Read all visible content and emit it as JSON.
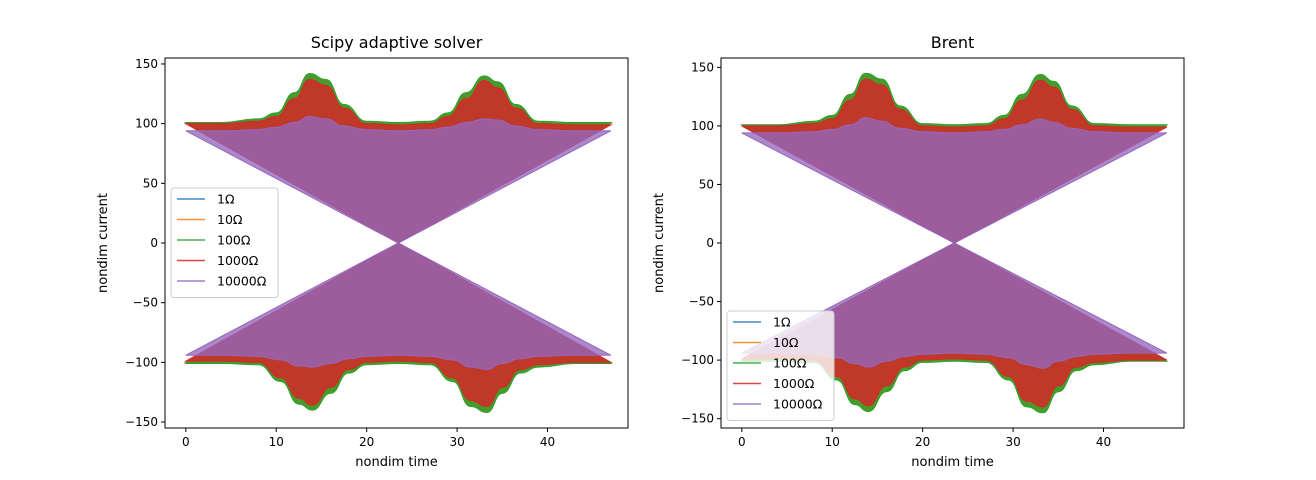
{
  "chart_data": [
    {
      "type": "line",
      "title": "Scipy adaptive solver",
      "xlabel": "nondim time",
      "ylabel": "nondim current",
      "xlim": [
        -2.3,
        48.9
      ],
      "ylim": [
        -155,
        155
      ],
      "xticks": [
        0,
        10,
        20,
        30,
        40
      ],
      "xtick_labels": [
        "0",
        "10",
        "20",
        "30",
        "40"
      ],
      "yticks": [
        -150,
        -100,
        -50,
        0,
        50,
        100,
        150
      ],
      "ytick_labels": [
        "−150",
        "−100",
        "−50",
        "0",
        "50",
        "100",
        "150"
      ],
      "legend_position": "center-left",
      "series": [
        {
          "name": "1Ω",
          "color": "#1f77b4",
          "envelope": {
            "x": [
              0,
              4,
              8,
              10,
              12,
              13.7,
              15.5,
              17.5,
              20,
              23.5,
              27,
              29,
              31,
              33,
              34.5,
              36.5,
              39,
              43,
              47
            ],
            "upper": [
              100,
              100,
              103,
              108,
              125,
              141,
              136,
              115,
              101,
              100,
              101,
              108,
              125,
              139,
              134,
              115,
              101,
              100,
              100
            ]
          }
        },
        {
          "name": "10Ω",
          "color": "#ff7f0e",
          "envelope": {
            "x": [
              0,
              4,
              8,
              10,
              12,
              13.7,
              15.5,
              17.5,
              20,
              23.5,
              27,
              29,
              31,
              33,
              34.5,
              36.5,
              39,
              43,
              47
            ],
            "upper": [
              100,
              100,
              103,
              108,
              125,
              141,
              136,
              115,
              101,
              100,
              101,
              108,
              125,
              139,
              134,
              115,
              101,
              100,
              100
            ]
          }
        },
        {
          "name": "100Ω",
          "color": "#2ca02c",
          "envelope": {
            "x": [
              0,
              4,
              8,
              10,
              12,
              13.7,
              15.5,
              17.5,
              20,
              23.5,
              27,
              29,
              31,
              33,
              34.5,
              36.5,
              39,
              43,
              47
            ],
            "upper": [
              101,
              101,
              104,
              109,
              126,
              142,
              137,
              116,
              102,
              101,
              102,
              109,
              126,
              140,
              135,
              116,
              102,
              101,
              101
            ]
          }
        },
        {
          "name": "1000Ω",
          "color": "#d62728",
          "envelope": {
            "x": [
              0,
              4,
              8,
              10,
              12,
              13.7,
              15.5,
              17.5,
              20,
              23.5,
              27,
              29,
              31,
              33,
              34.5,
              36.5,
              39,
              43,
              47
            ],
            "upper": [
              100,
              100,
              102,
              106,
              121,
              137,
              132,
              113,
              100,
              99,
              100,
              106,
              121,
              136,
              130,
              113,
              100,
              99,
              99
            ]
          }
        },
        {
          "name": "10000Ω",
          "color": "#9467bd",
          "envelope": {
            "x": [
              0,
              4,
              8,
              10,
              12,
              13.7,
              15.5,
              17.5,
              20,
              23.5,
              27,
              29,
              31,
              33,
              34.5,
              36.5,
              39,
              43,
              47
            ],
            "upper": [
              94,
              94,
              95,
              97,
              101,
              106,
              104,
              98,
              95,
              94,
              95,
              97,
              101,
              104,
              103,
              98,
              95,
              94,
              94
            ]
          }
        }
      ]
    },
    {
      "type": "line",
      "title": "Brent",
      "xlabel": "nondim time",
      "ylabel": "nondim current",
      "xlim": [
        -2.3,
        48.9
      ],
      "ylim": [
        -158,
        158
      ],
      "xticks": [
        0,
        10,
        20,
        30,
        40
      ],
      "xtick_labels": [
        "0",
        "10",
        "20",
        "30",
        "40"
      ],
      "yticks": [
        -150,
        -100,
        -50,
        0,
        50,
        100,
        150
      ],
      "ytick_labels": [
        "−150",
        "−100",
        "−50",
        "0",
        "50",
        "100",
        "150"
      ],
      "legend_position": "lower-left",
      "series": [
        {
          "name": "1Ω",
          "color": "#1f77b4",
          "envelope": {
            "x": [
              0,
              4,
              8,
              10,
              12,
              13.7,
              15.5,
              17.5,
              20,
              23.5,
              27,
              29,
              31,
              33,
              34.5,
              36.5,
              39,
              43,
              47
            ],
            "upper": [
              100,
              100,
              103,
              108,
              126,
              144,
              139,
              116,
              101,
              100,
              101,
              108,
              126,
              143,
              137,
              116,
              101,
              100,
              100
            ]
          }
        },
        {
          "name": "10Ω",
          "color": "#ff7f0e",
          "envelope": {
            "x": [
              0,
              4,
              8,
              10,
              12,
              13.7,
              15.5,
              17.5,
              20,
              23.5,
              27,
              29,
              31,
              33,
              34.5,
              36.5,
              39,
              43,
              47
            ],
            "upper": [
              100,
              100,
              103,
              108,
              126,
              144,
              139,
              116,
              101,
              100,
              101,
              108,
              126,
              143,
              137,
              116,
              101,
              100,
              100
            ]
          }
        },
        {
          "name": "100Ω",
          "color": "#2ca02c",
          "envelope": {
            "x": [
              0,
              4,
              8,
              10,
              12,
              13.7,
              15.5,
              17.5,
              20,
              23.5,
              27,
              29,
              31,
              33,
              34.5,
              36.5,
              39,
              43,
              47
            ],
            "upper": [
              101,
              101,
              104,
              109,
              127,
              145,
              140,
              117,
              102,
              101,
              102,
              109,
              127,
              144,
              138,
              117,
              102,
              101,
              101
            ]
          }
        },
        {
          "name": "1000Ω",
          "color": "#d62728",
          "envelope": {
            "x": [
              0,
              4,
              8,
              10,
              12,
              13.7,
              15.5,
              17.5,
              20,
              23.5,
              27,
              29,
              31,
              33,
              34.5,
              36.5,
              39,
              43,
              47
            ],
            "upper": [
              100,
              100,
              102,
              106,
              122,
              140,
              135,
              114,
              100,
              99,
              100,
              106,
              122,
              139,
              133,
              114,
              100,
              99,
              99
            ]
          }
        },
        {
          "name": "10000Ω",
          "color": "#9467bd",
          "envelope": {
            "x": [
              0,
              4,
              8,
              10,
              12,
              13.7,
              15.5,
              17.5,
              20,
              23.5,
              27,
              29,
              31,
              33,
              34.5,
              36.5,
              39,
              43,
              47
            ],
            "upper": [
              94,
              94,
              95,
              97,
              101,
              107,
              104,
              98,
              95,
              94,
              95,
              97,
              101,
              106,
              103,
              98,
              95,
              94,
              94
            ]
          }
        }
      ]
    }
  ]
}
